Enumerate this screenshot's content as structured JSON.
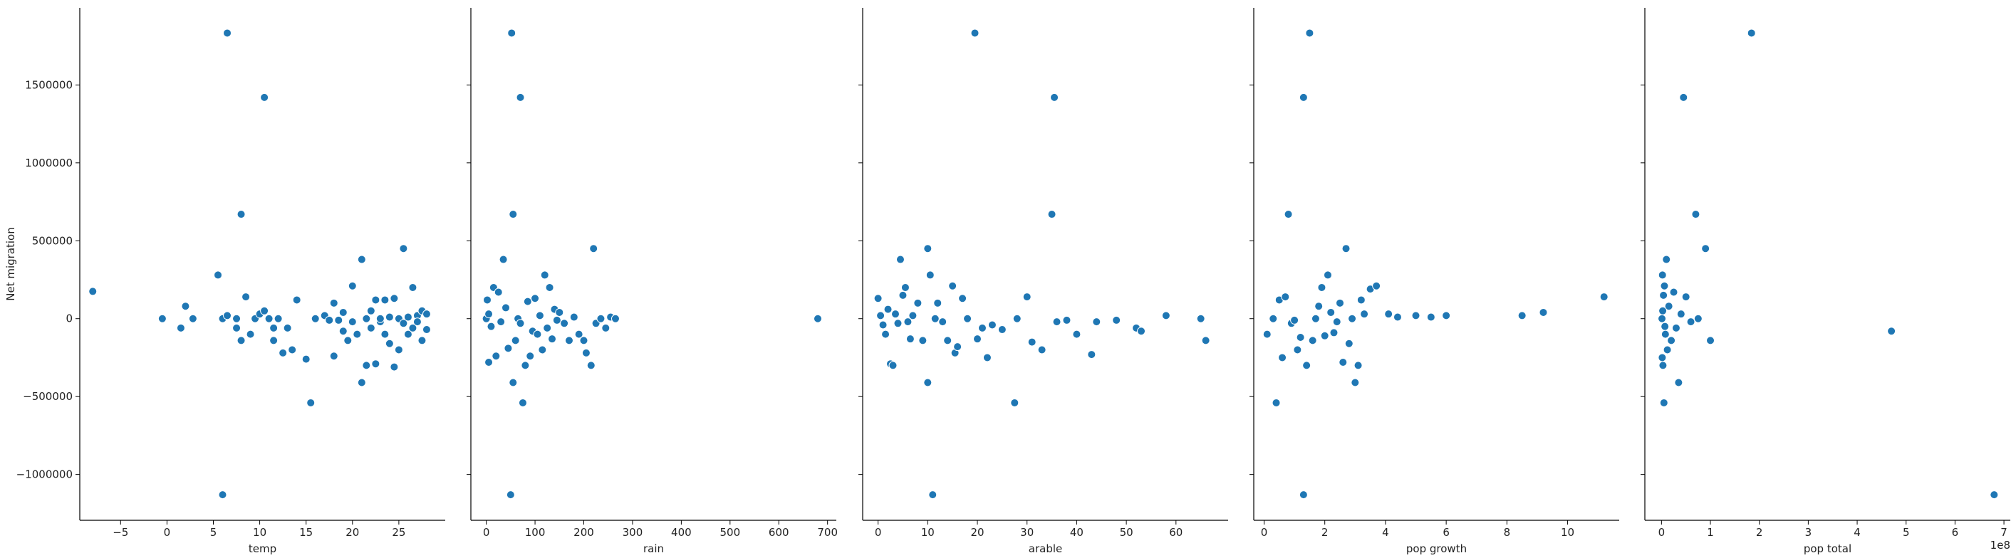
{
  "chart_data": [
    {
      "type": "scatter",
      "xlabel": "temp",
      "ylabel": "Net migration",
      "color": "#1f77b4",
      "x": [
        -8,
        -0.5,
        1.5,
        2,
        2.8,
        5.5,
        6,
        6.5,
        6.5,
        6,
        7.5,
        7.5,
        8,
        8,
        8.5,
        9,
        9.5,
        10,
        10.5,
        10.5,
        11,
        11.5,
        11.5,
        12,
        12.5,
        13,
        13.5,
        14,
        15,
        15.5,
        16,
        17,
        17.5,
        18,
        18,
        18.5,
        19,
        19,
        19.5,
        20,
        20,
        20.5,
        21,
        21,
        21.5,
        21.5,
        22,
        22,
        22.5,
        22.5,
        23,
        23,
        23.5,
        23.5,
        24,
        24,
        24.5,
        24.5,
        25,
        25,
        25.5,
        25.5,
        26,
        26,
        26.5,
        26.5,
        27,
        27,
        27.5,
        27.5,
        28,
        28
      ],
      "values": [
        175000,
        0,
        -60000,
        80000,
        0,
        280000,
        0,
        20000,
        1833000,
        -1130000,
        0,
        -60000,
        670000,
        -140000,
        140000,
        -100000,
        0,
        30000,
        1420000,
        50000,
        0,
        -140000,
        -60000,
        0,
        -220000,
        -60000,
        -200000,
        120000,
        -260000,
        -540000,
        0,
        20000,
        -10000,
        -240000,
        100000,
        -10000,
        -80000,
        40000,
        -140000,
        210000,
        -20000,
        -100000,
        -410000,
        380000,
        -300000,
        0,
        50000,
        -60000,
        -290000,
        120000,
        -20000,
        0,
        -100000,
        120000,
        -160000,
        10000,
        -310000,
        130000,
        -200000,
        0,
        450000,
        -30000,
        10000,
        -100000,
        200000,
        -60000,
        20000,
        -20000,
        50000,
        -140000,
        -70000,
        30000
      ],
      "xlim": [
        -9.4,
        30
      ],
      "ylim": [
        -1294000,
        1995000
      ],
      "xticks": [
        {
          "value": -5,
          "label": "−5"
        },
        0,
        5,
        10,
        15,
        20,
        25
      ],
      "yticks": [
        {
          "value": -1000000,
          "label": "−1000000"
        },
        {
          "value": -500000,
          "label": "−500000"
        },
        0,
        500000,
        1000000,
        1500000
      ]
    },
    {
      "type": "scatter",
      "xlabel": "rain",
      "color": "#1f77b4",
      "x": [
        0,
        2,
        5,
        5,
        10,
        15,
        20,
        25,
        30,
        35,
        40,
        45,
        50,
        52,
        55,
        55,
        60,
        65,
        70,
        70,
        75,
        80,
        85,
        90,
        95,
        100,
        105,
        110,
        115,
        120,
        125,
        130,
        135,
        140,
        145,
        150,
        160,
        170,
        180,
        190,
        200,
        205,
        215,
        220,
        225,
        235,
        245,
        255,
        265,
        680
      ],
      "values": [
        0,
        120000,
        -280000,
        30000,
        -50000,
        200000,
        -240000,
        170000,
        -20000,
        380000,
        70000,
        -190000,
        -1130000,
        1833000,
        670000,
        -410000,
        -140000,
        0,
        1420000,
        -30000,
        -540000,
        -300000,
        110000,
        -240000,
        -80000,
        130000,
        -100000,
        20000,
        -200000,
        280000,
        -60000,
        200000,
        -130000,
        60000,
        -10000,
        40000,
        -30000,
        -140000,
        10000,
        -100000,
        -140000,
        -220000,
        -300000,
        450000,
        -30000,
        0,
        -60000,
        10000,
        0,
        0
      ],
      "xlim": [
        -31.6,
        718
      ],
      "ylim": [
        -1294000,
        1995000
      ],
      "xticks": [
        0,
        100,
        200,
        300,
        400,
        500,
        600,
        700
      ]
    },
    {
      "type": "scatter",
      "xlabel": "arable",
      "color": "#1f77b4",
      "x": [
        0,
        0.5,
        1,
        1.5,
        2,
        2.5,
        3,
        3.5,
        4,
        4.5,
        5,
        5.5,
        6,
        6.5,
        7,
        8,
        9,
        10,
        10,
        10.5,
        11,
        11.5,
        12,
        13,
        14,
        15,
        15.5,
        16,
        17,
        18,
        19.5,
        20,
        21,
        22,
        23,
        25,
        27.5,
        28,
        30,
        31,
        33,
        35,
        35.5,
        36,
        38,
        40,
        43,
        44,
        48,
        52,
        53,
        58,
        65,
        66
      ],
      "values": [
        130000,
        20000,
        -40000,
        -100000,
        60000,
        -290000,
        -300000,
        30000,
        -30000,
        380000,
        150000,
        200000,
        -20000,
        -130000,
        20000,
        100000,
        -140000,
        450000,
        -410000,
        280000,
        -1130000,
        0,
        100000,
        -20000,
        -140000,
        210000,
        -220000,
        -180000,
        130000,
        0,
        1833000,
        -130000,
        -60000,
        -250000,
        -40000,
        -70000,
        -540000,
        0,
        140000,
        -150000,
        -200000,
        670000,
        1420000,
        -20000,
        -10000,
        -100000,
        -230000,
        -20000,
        -10000,
        -60000,
        -80000,
        20000,
        0,
        -140000
      ],
      "xlim": [
        -3.1,
        70.5
      ],
      "ylim": [
        -1294000,
        1995000
      ],
      "xticks": [
        0,
        10,
        20,
        30,
        40,
        50,
        60
      ]
    },
    {
      "type": "scatter",
      "xlabel": "pop growth",
      "color": "#1f77b4",
      "x": [
        0.1,
        0.3,
        0.4,
        0.5,
        0.6,
        0.7,
        0.8,
        0.9,
        1,
        1.1,
        1.2,
        1.3,
        1.3,
        1.4,
        1.5,
        1.6,
        1.7,
        1.8,
        1.9,
        2,
        2.1,
        2.2,
        2.3,
        2.4,
        2.5,
        2.6,
        2.7,
        2.8,
        2.9,
        3,
        3.1,
        3.2,
        3.3,
        3.5,
        3.7,
        4.1,
        4.4,
        5,
        5.5,
        6,
        8.5,
        9.2,
        11.2
      ],
      "values": [
        -100000,
        0,
        -540000,
        120000,
        -250000,
        140000,
        670000,
        -30000,
        -10000,
        -200000,
        -120000,
        1420000,
        -1130000,
        -300000,
        1833000,
        -140000,
        0,
        80000,
        200000,
        -110000,
        280000,
        40000,
        -90000,
        -20000,
        100000,
        -280000,
        450000,
        -160000,
        0,
        -410000,
        -300000,
        120000,
        30000,
        190000,
        210000,
        30000,
        10000,
        20000,
        10000,
        20000,
        20000,
        40000,
        140000
      ],
      "xlim": [
        -0.34,
        11.7
      ],
      "ylim": [
        -1294000,
        1995000
      ],
      "xticks": [
        0,
        2,
        4,
        6,
        8,
        10
      ]
    },
    {
      "type": "scatter",
      "xlabel": "pop total",
      "offset_text": "1e8",
      "color": "#1f77b4",
      "x": [
        1000000,
        2000000,
        3000000,
        4000000,
        5000000,
        6000000,
        8000000,
        10000000,
        12000000,
        15000000,
        20000000,
        25000000,
        30000000,
        35000000,
        40000000,
        45000000,
        50000000,
        60000000,
        70000000,
        75000000,
        90000000,
        100000000,
        184000000,
        470000000,
        680000000,
        1500000,
        2500000,
        7000000
      ],
      "values": [
        0,
        280000,
        -300000,
        150000,
        -540000,
        210000,
        -100000,
        380000,
        -200000,
        80000,
        -140000,
        170000,
        -60000,
        -410000,
        30000,
        1420000,
        140000,
        -20000,
        670000,
        0,
        450000,
        -140000,
        1833000,
        -80000,
        -1130000,
        -250000,
        50000,
        -50000
      ],
      "xlim": [
        -34000000,
        713000000
      ],
      "ylim": [
        -1294000,
        1995000
      ],
      "xticks": [
        0,
        {
          "value": 100000000,
          "label": "1"
        },
        {
          "value": 200000000,
          "label": "2"
        },
        {
          "value": 300000000,
          "label": "3"
        },
        {
          "value": 400000000,
          "label": "4"
        },
        {
          "value": 500000000,
          "label": "5"
        },
        {
          "value": 600000000,
          "label": "6"
        },
        {
          "value": 700000000,
          "label": "7"
        }
      ]
    }
  ]
}
